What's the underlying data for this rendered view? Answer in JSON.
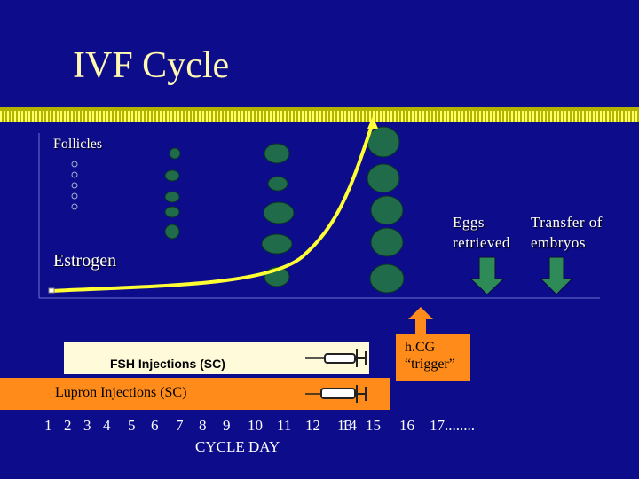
{
  "title": "IVF  Cycle",
  "labels": {
    "follicles": "Follicles",
    "estrogen": "Estrogen",
    "eggs_line1": "Eggs",
    "eggs_line2": "retrieved",
    "transfer_line1": "Transfer of",
    "transfer_line2": "embryos",
    "fsh": "FSH Injections (SC)",
    "lupron": "Lupron Injections (SC)",
    "hcg_line1": "h.CG",
    "hcg_line2": "“trigger”",
    "cycle_day": "CYCLE DAY"
  },
  "days": [
    "1",
    "2",
    "3",
    "4",
    "5",
    "6",
    "7",
    "8",
    "9",
    "10",
    "11",
    "12",
    "13",
    "14",
    "15",
    "16",
    "17........"
  ],
  "colors": {
    "background": "#0d0d8c",
    "title": "#fff8b0",
    "estrogen_curve": "#ffff33",
    "follicle": "#1f6b4a",
    "arrow_green": "#2e8b57",
    "orange": "#ff8c1a",
    "cream": "#fffad9"
  },
  "icons": [
    "syringe-icon",
    "down-arrow-icon",
    "up-arrow-icon"
  ]
}
